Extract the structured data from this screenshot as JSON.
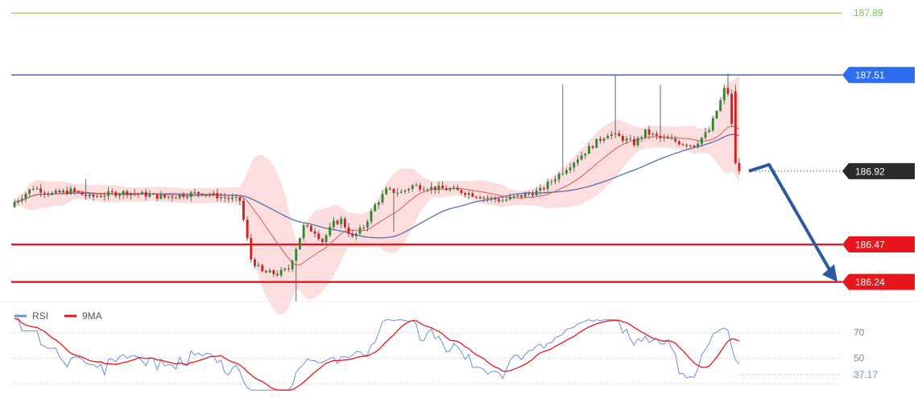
{
  "chart_data": [
    {
      "type": "candlestick",
      "series": [
        {
          "name": "",
          "kind": "candles"
        },
        {
          "name": "",
          "kind": "moving-average",
          "color": "#e05555"
        },
        {
          "name": "",
          "kind": "moving-average",
          "color": "#5a6fb4"
        },
        {
          "name": "",
          "kind": "bollinger-band",
          "color": "#fbd3d3"
        }
      ],
      "ylim": [
        186.12,
        187.97
      ],
      "current_price": "186.92",
      "levels": [
        {
          "value": 187.89,
          "label": "187.89",
          "color": "#7dbf4e",
          "style": "thin-line"
        },
        {
          "value": 187.51,
          "label": "187.51",
          "color": "#2f6df0",
          "style": "line"
        },
        {
          "value": 186.47,
          "label": "186.47",
          "color": "#e8161c",
          "style": "thick-line"
        },
        {
          "value": 186.24,
          "label": "186.24",
          "color": "#e8161c",
          "style": "thick-line"
        }
      ],
      "forecast_arrow": {
        "path_values": [
          186.92,
          186.96,
          186.24
        ],
        "color": "#2c5aa0"
      },
      "colors": {
        "bull": "#2f8a2f",
        "bear": "#d42020",
        "wick": "#666666"
      }
    },
    {
      "type": "line",
      "legend": [
        {
          "label": "RSI",
          "color": "#6a8fe0"
        },
        {
          "label": "9MA",
          "color": "#e8161c"
        }
      ],
      "ticks": [
        "70",
        "50"
      ],
      "current_value": "37.17",
      "ylim": [
        22,
        88
      ]
    }
  ]
}
